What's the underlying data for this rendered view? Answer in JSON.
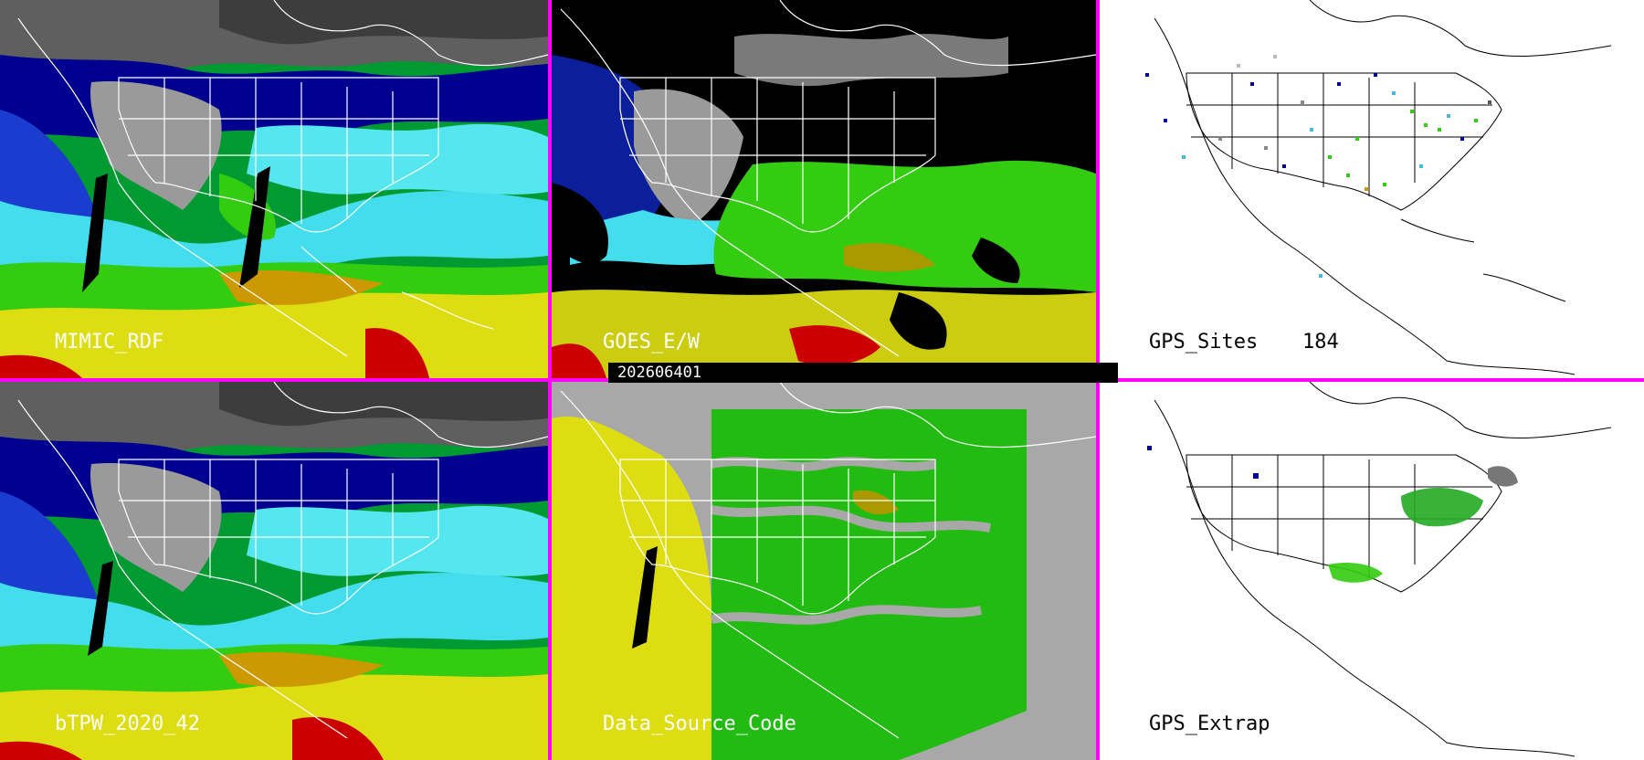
{
  "panels": [
    {
      "id": "p1",
      "label": "MIMIC_RDF",
      "style": "tpw"
    },
    {
      "id": "p2",
      "label": "GOES_E/W",
      "style": "goes"
    },
    {
      "id": "p3",
      "label": "GPS_Sites",
      "count": "184",
      "style": "gps"
    },
    {
      "id": "p4",
      "label": "bTPW_2020_42",
      "style": "tpw"
    },
    {
      "id": "p5",
      "label": "Data_Source_Code",
      "style": "dsc"
    },
    {
      "id": "p6",
      "label": "GPS_Extrap",
      "style": "gpsx"
    }
  ],
  "timestamp": "202606401",
  "colors": {
    "frame": "#ff00ff",
    "very_dry": "#5a5a5a",
    "dry_gray": "#a8a8a8",
    "navy": "#000099",
    "blue": "#1a33cc",
    "cyan": "#44ddee",
    "green": "#33cc11",
    "yellow": "#dddd11",
    "olive": "#aa9900",
    "red": "#cc0000"
  }
}
